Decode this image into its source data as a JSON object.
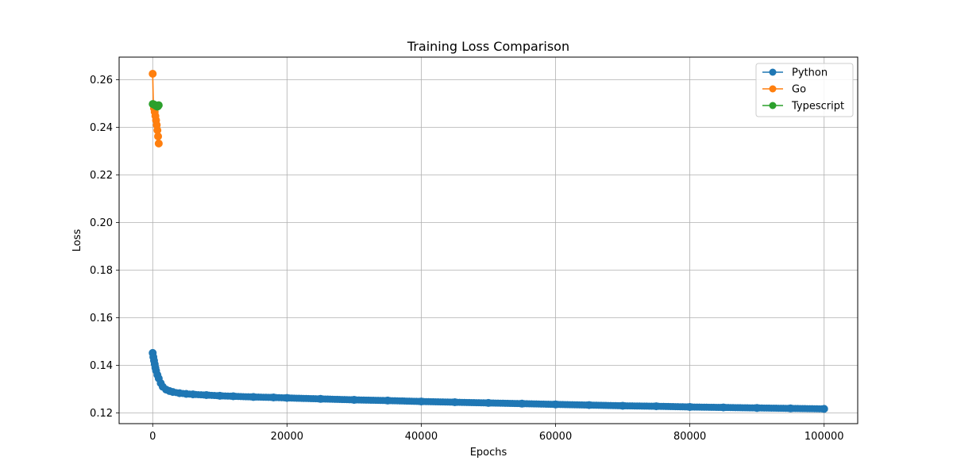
{
  "chart_data": {
    "type": "line",
    "title": "Training Loss Comparison",
    "xlabel": "Epochs",
    "ylabel": "Loss",
    "xlim": [
      -5000,
      105000
    ],
    "ylim": [
      0.1155,
      0.2695
    ],
    "xticks": [
      0,
      20000,
      40000,
      60000,
      80000,
      100000
    ],
    "xtick_labels": [
      "0",
      "20000",
      "40000",
      "60000",
      "80000",
      "100000"
    ],
    "yticks": [
      0.12,
      0.14,
      0.16,
      0.18,
      0.2,
      0.22,
      0.24,
      0.26
    ],
    "ytick_labels": [
      "0.12",
      "0.14",
      "0.16",
      "0.18",
      "0.20",
      "0.22",
      "0.24",
      "0.26"
    ],
    "grid": true,
    "legend_position": "top-right",
    "series": [
      {
        "name": "Python",
        "color": "#1f77b4",
        "marker": "circle",
        "x": [
          0,
          100,
          200,
          300,
          400,
          500,
          700,
          900,
          1200,
          1500,
          2000,
          2500,
          3000,
          4000,
          5000,
          6000,
          8000,
          10000,
          12000,
          15000,
          18000,
          20000,
          25000,
          30000,
          35000,
          40000,
          45000,
          50000,
          55000,
          60000,
          65000,
          70000,
          75000,
          80000,
          85000,
          90000,
          95000,
          100000
        ],
        "y": [
          0.1452,
          0.1435,
          0.142,
          0.1405,
          0.139,
          0.1378,
          0.136,
          0.1345,
          0.1325,
          0.131,
          0.1298,
          0.1292,
          0.1288,
          0.1283,
          0.128,
          0.1278,
          0.1275,
          0.1272,
          0.127,
          0.1267,
          0.1265,
          0.1263,
          0.1259,
          0.1255,
          0.1252,
          0.1248,
          0.1245,
          0.1242,
          0.1239,
          0.1236,
          0.1233,
          0.123,
          0.1228,
          0.1225,
          0.1223,
          0.1221,
          0.1219,
          0.1217
        ]
      },
      {
        "name": "Go",
        "color": "#ff7f0e",
        "marker": "circle",
        "x": [
          0,
          100,
          200,
          300,
          400,
          500,
          600,
          700,
          800,
          900
        ],
        "y": [
          0.2625,
          0.2495,
          0.248,
          0.2465,
          0.2448,
          0.243,
          0.241,
          0.2388,
          0.2362,
          0.2332
        ]
      },
      {
        "name": "Typescript",
        "color": "#2ca02c",
        "marker": "circle",
        "x": [
          0,
          100,
          200,
          300,
          400,
          500,
          600,
          700,
          800,
          900
        ],
        "y": [
          0.2498,
          0.2497,
          0.2495,
          0.2494,
          0.2492,
          0.249,
          0.2488,
          0.2487,
          0.2489,
          0.2493
        ]
      }
    ]
  }
}
